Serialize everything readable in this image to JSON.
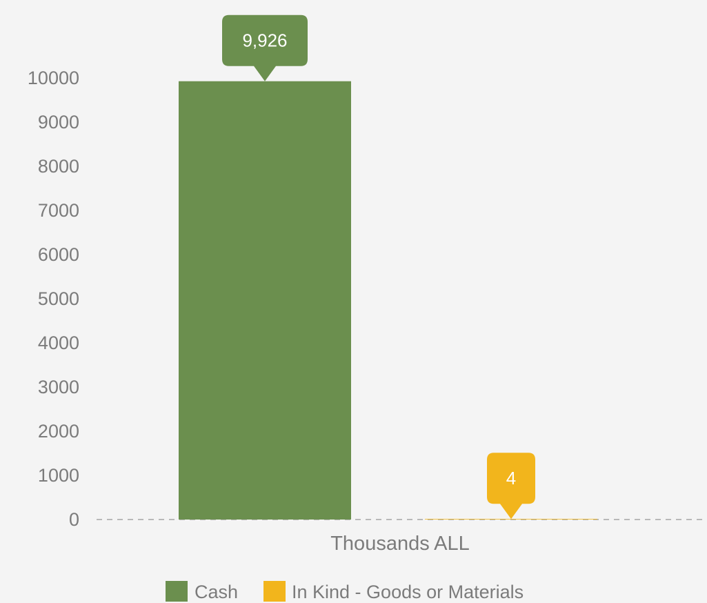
{
  "chart_data": {
    "type": "bar",
    "title": "",
    "xlabel": "",
    "ylabel": "",
    "categories": [
      "Thousands ALL"
    ],
    "series": [
      {
        "name": "Cash",
        "values": [
          9926
        ],
        "data_labels": [
          "9,926"
        ],
        "color": "#6b8f4e"
      },
      {
        "name": "In Kind - Goods or Materials",
        "values": [
          4
        ],
        "data_labels": [
          "4"
        ],
        "color": "#f2b51c"
      }
    ],
    "ylim": [
      0,
      10000
    ],
    "yticks": [
      "0",
      "1000",
      "2000",
      "3000",
      "4000",
      "5000",
      "6000",
      "7000",
      "8000",
      "9000",
      "10000"
    ],
    "grid": false,
    "baseline": "dashed",
    "legend": "bottom-center"
  }
}
